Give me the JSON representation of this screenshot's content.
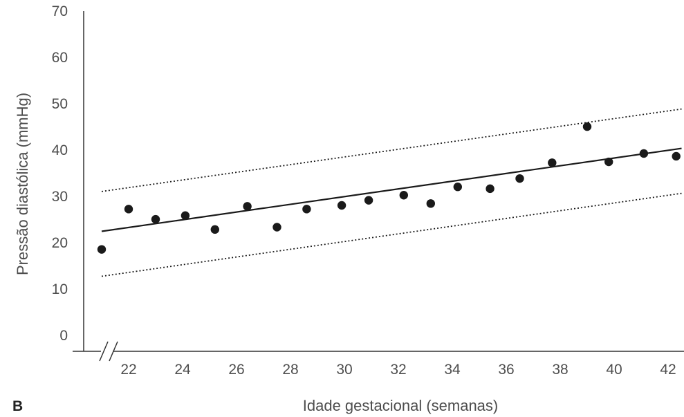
{
  "panel_label": "B",
  "chart_data": {
    "type": "scatter",
    "xlabel": "Idade gestacional (semanas)",
    "ylabel": "Pressão diastólica (mmHg)",
    "xlim": [
      20.5,
      42.5
    ],
    "ylim": [
      0,
      70
    ],
    "x_ticks": [
      22,
      24,
      26,
      28,
      30,
      32,
      34,
      36,
      38,
      40,
      42
    ],
    "y_ticks": [
      0,
      10,
      20,
      30,
      40,
      50,
      60,
      70
    ],
    "axis_break": true,
    "grid": false,
    "points": [
      {
        "x": 21.0,
        "y": 20.5
      },
      {
        "x": 22.0,
        "y": 29.2
      },
      {
        "x": 23.0,
        "y": 27.0
      },
      {
        "x": 24.1,
        "y": 27.8
      },
      {
        "x": 25.2,
        "y": 24.8
      },
      {
        "x": 26.4,
        "y": 29.8
      },
      {
        "x": 27.5,
        "y": 25.3
      },
      {
        "x": 28.6,
        "y": 29.2
      },
      {
        "x": 29.9,
        "y": 30.0
      },
      {
        "x": 30.9,
        "y": 31.1
      },
      {
        "x": 32.2,
        "y": 32.2
      },
      {
        "x": 33.2,
        "y": 30.4
      },
      {
        "x": 34.2,
        "y": 34.0
      },
      {
        "x": 35.4,
        "y": 33.6
      },
      {
        "x": 36.5,
        "y": 35.8
      },
      {
        "x": 37.7,
        "y": 39.2
      },
      {
        "x": 39.0,
        "y": 47.0
      },
      {
        "x": 39.8,
        "y": 39.4
      },
      {
        "x": 41.1,
        "y": 41.2
      },
      {
        "x": 42.3,
        "y": 40.6
      }
    ],
    "lines": [
      {
        "style": "solid",
        "x": [
          21.0,
          42.5
        ],
        "y": [
          24.4,
          42.3
        ]
      },
      {
        "style": "dotted",
        "x": [
          21.0,
          42.5
        ],
        "y": [
          33.0,
          50.8
        ]
      },
      {
        "style": "dotted",
        "x": [
          21.0,
          42.5
        ],
        "y": [
          14.7,
          32.6
        ]
      }
    ],
    "colors": {
      "points": "#1a1a1a",
      "lines": "#1a1a1a",
      "axis": "#333333",
      "text": "#4d4d4d"
    }
  }
}
